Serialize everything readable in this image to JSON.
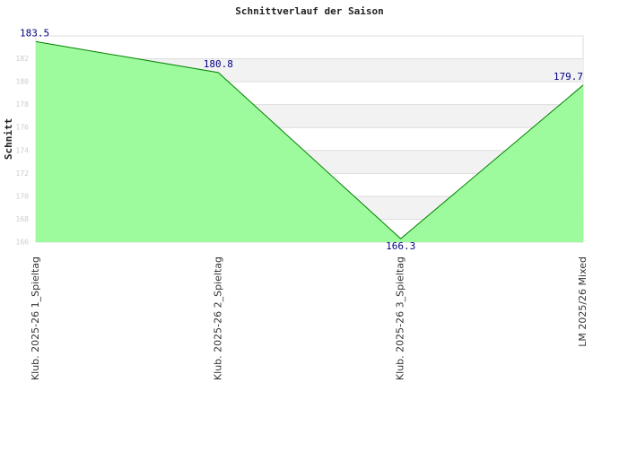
{
  "chart_data": {
    "type": "area",
    "title": "Schnittverlauf der Saison",
    "y_label": "Schnitt",
    "categories": [
      "Klub. 2025-26  1_Spieltag",
      "Klub. 2025-26  2_Spieltag",
      "Klub. 2025-26  3_Spieltag",
      "LM 2025/26 Mixed"
    ],
    "values": [
      183.5,
      180.8,
      166.3,
      179.7
    ],
    "color": "#98fb98",
    "line_color": "#008000",
    "ylim": [
      166,
      184
    ],
    "yticks": [
      166,
      168,
      170,
      172,
      174,
      176,
      178,
      180,
      182
    ],
    "grid": true
  }
}
